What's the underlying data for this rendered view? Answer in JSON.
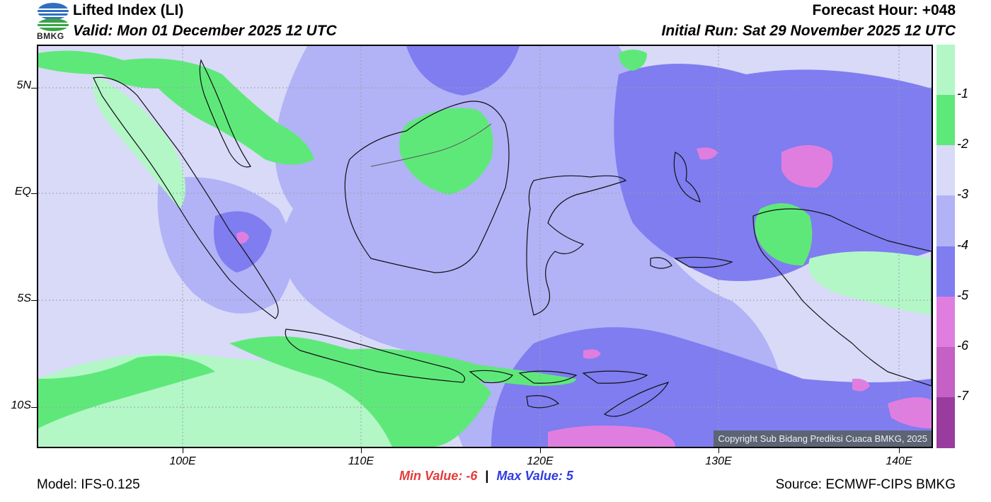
{
  "header": {
    "title": "Lifted Index (LI)",
    "valid": "Valid: Mon 01 December 2025 12 UTC",
    "forecast_hour": "Forecast Hour: +048",
    "initial_run": "Initial Run: Sat 29 November 2025 12 UTC"
  },
  "logo": {
    "text": "BMKG"
  },
  "axes": {
    "y_labels": [
      "5N",
      "EQ",
      "5S",
      "10S"
    ],
    "x_labels": [
      "100E",
      "110E",
      "120E",
      "130E",
      "140E"
    ],
    "lat_range": [
      -12,
      7
    ],
    "lon_range": [
      92,
      142
    ]
  },
  "legend": {
    "labels": [
      "-1",
      "-2",
      "-3",
      "-4",
      "-5",
      "-6",
      "-7"
    ],
    "colors": [
      "#b3f7c7",
      "#5fe87a",
      "#d8daf8",
      "#b2b2f7",
      "#7f7df0",
      "#e07ee0",
      "#c560c4",
      "#9a3c9e"
    ]
  },
  "stats": {
    "min_label": "Min Value:",
    "min_value": "-6",
    "separator": "|",
    "max_label": "Max Value:",
    "max_value": "5"
  },
  "footer": {
    "model": "Model: IFS-0.125",
    "source": "Source: ECMWF-CIPS BMKG",
    "copyright": "Copyright Sub Bidang Prediksi Cuaca BMKG, 2025"
  }
}
